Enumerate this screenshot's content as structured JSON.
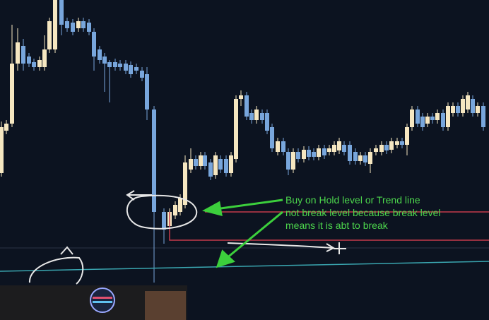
{
  "annotation": {
    "lines": [
      "Buy on Hold level or Trend line",
      "not  break level because break level",
      "means it is abt to break"
    ]
  }
}
